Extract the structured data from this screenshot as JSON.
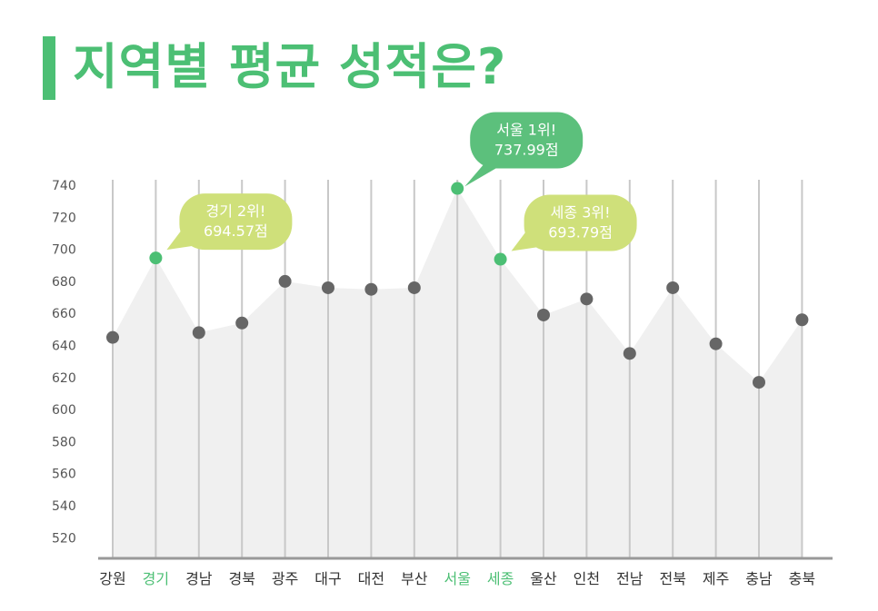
{
  "title": "지역별 평균 성적은?",
  "colors": {
    "accent": "#4cbf74",
    "point": "#666666",
    "area": "#f0f0f0",
    "gridline": "#c8c8c8",
    "bubble_green": "#5cc07c",
    "bubble_lime": "#cfe07a"
  },
  "chart_data": {
    "type": "area",
    "categories": [
      "강원",
      "경기",
      "경남",
      "경북",
      "광주",
      "대구",
      "대전",
      "부산",
      "서울",
      "세종",
      "울산",
      "인천",
      "전남",
      "전북",
      "제주",
      "충남",
      "충북"
    ],
    "values": [
      645,
      694.57,
      648,
      654,
      680,
      676,
      675,
      676,
      737.99,
      693.79,
      659,
      669,
      635,
      676,
      641,
      617,
      656
    ],
    "highlighted": [
      "경기",
      "서울",
      "세종"
    ],
    "yticks": [
      520,
      540,
      560,
      580,
      600,
      620,
      640,
      660,
      680,
      700,
      720,
      740
    ],
    "ylim": [
      510,
      745
    ],
    "grid": "vertical",
    "annotations": [
      {
        "category": "서울",
        "line1": "서울 1위!",
        "line2": "737.99점",
        "style": "green"
      },
      {
        "category": "경기",
        "line1": "경기 2위!",
        "line2": "694.57점",
        "style": "lime"
      },
      {
        "category": "세종",
        "line1": "세종 3위!",
        "line2": "693.79점",
        "style": "lime"
      }
    ]
  }
}
